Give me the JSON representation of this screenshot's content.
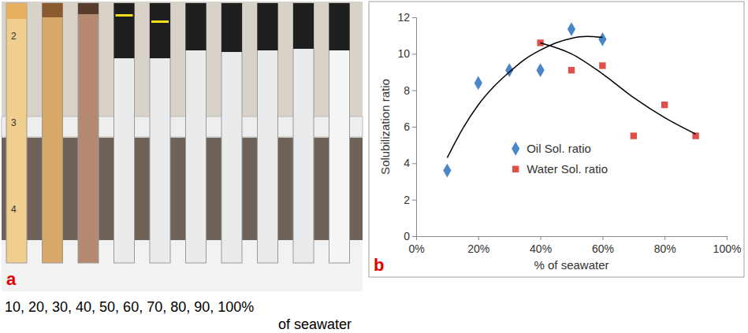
{
  "photo": {
    "panel_label": "a",
    "scale_labels": [
      "2",
      "3",
      "4"
    ],
    "caption_line1": "10, 20, 30, 40, 50, 60, 70, 80, 90, 100%",
    "caption_line2": "of seawater"
  },
  "chart_data": {
    "type": "scatter",
    "panel_label": "b",
    "x_label": "% of seawater",
    "y_label": "Solubilization ratio",
    "xlim": [
      0,
      100
    ],
    "xticks": [
      {
        "value": 0,
        "label": "0%"
      },
      {
        "value": 20,
        "label": "20%"
      },
      {
        "value": 40,
        "label": "40%"
      },
      {
        "value": 60,
        "label": "60%"
      },
      {
        "value": 80,
        "label": "80%"
      },
      {
        "value": 100,
        "label": "100%"
      }
    ],
    "ylim": [
      0,
      12
    ],
    "yticks": [
      0,
      2,
      4,
      6,
      8,
      10,
      12
    ],
    "grid": false,
    "legend": "center",
    "series": [
      {
        "name": "Oil Sol. ratio",
        "color": "#4a86c8",
        "marker": "diamond",
        "x": [
          10,
          20,
          30,
          40,
          50,
          60
        ],
        "values": [
          3.6,
          8.4,
          9.1,
          9.1,
          11.35,
          10.8
        ]
      },
      {
        "name": "Water Sol. ratio",
        "color": "#e0504a",
        "marker": "square",
        "x": [
          40,
          50,
          60,
          70,
          80,
          90
        ],
        "values": [
          10.6,
          9.1,
          9.35,
          5.5,
          7.2,
          5.5
        ]
      },
      {
        "type": "line",
        "color": "#000000",
        "line_style": "solid",
        "x": [
          10,
          15,
          20,
          25,
          30,
          35,
          40,
          45,
          50,
          55,
          60
        ],
        "values": [
          4.3,
          5.9,
          7.2,
          8.2,
          9.0,
          9.7,
          10.2,
          10.6,
          10.85,
          10.95,
          10.9
        ]
      },
      {
        "type": "line",
        "color": "#000000",
        "line_style": "solid",
        "x": [
          40,
          50,
          60,
          70,
          80,
          90
        ],
        "values": [
          10.6,
          10.0,
          8.9,
          7.6,
          6.5,
          5.6
        ]
      }
    ]
  }
}
